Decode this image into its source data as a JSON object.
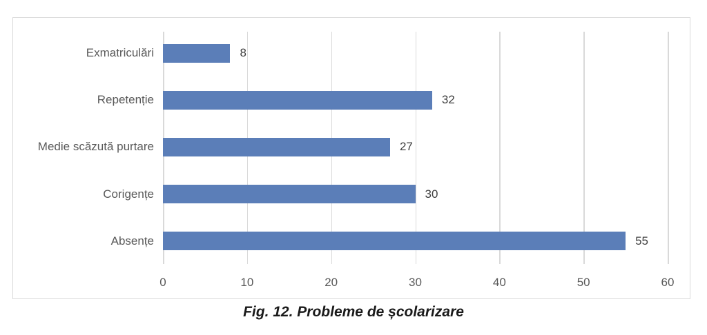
{
  "figure": {
    "caption": "Fig. 12. Probleme de școlarizare"
  },
  "chart_data": {
    "type": "bar",
    "orientation": "horizontal",
    "title": "",
    "xlabel": "",
    "ylabel": "",
    "categories": [
      "Exmatriculări",
      "Repetenție",
      "Medie scăzută purtare",
      "Corigențe",
      "Absențe"
    ],
    "values": [
      8,
      32,
      27,
      30,
      55
    ],
    "xlim": [
      0,
      60
    ],
    "xticks": [
      0,
      10,
      20,
      30,
      40,
      50,
      60
    ],
    "grid": true,
    "legend": false,
    "colors": {
      "bar": "#5b7eb8",
      "gridline": "#d9d9d9",
      "frame_border": "#d9d9d9",
      "category_label": "#595959",
      "tick_label": "#595959",
      "value_label": "#404040",
      "background": "#ffffff"
    }
  }
}
